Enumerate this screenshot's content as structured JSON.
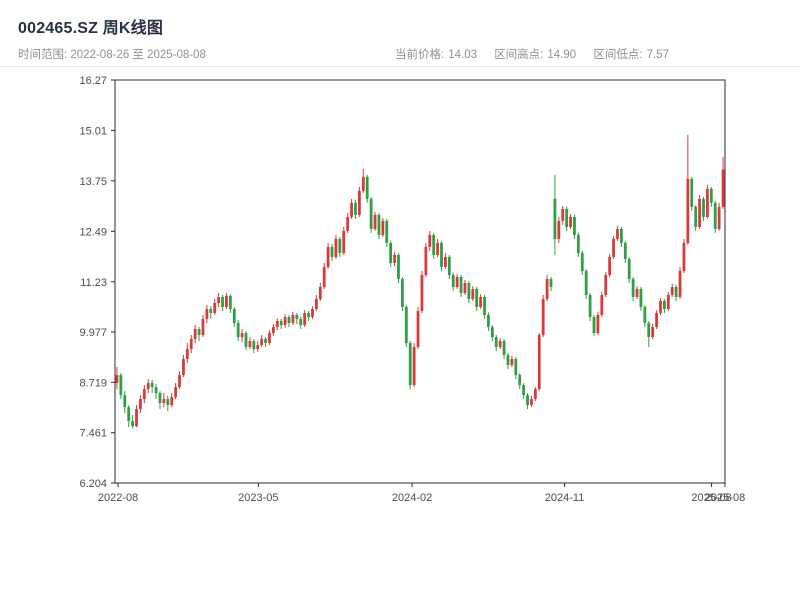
{
  "header": {
    "title": "002465.SZ 周K线图",
    "range_text": "时间范围: 2022-08-26 至 2025-08-08",
    "stats": {
      "current_label": "当前价格:",
      "current_value": "14.03",
      "high_label": "区间高点:",
      "high_value": "14.90",
      "low_label": "区间低点:",
      "low_value": "7.57"
    }
  },
  "chart_data": {
    "type": "candlestick",
    "title": "002465.SZ 周K线图",
    "interval": "weekly",
    "date_range": [
      "2022-08-26",
      "2025-08-08"
    ],
    "current_price": 14.03,
    "range_high": 14.9,
    "range_low": 7.57,
    "ylim": [
      6.204,
      16.27
    ],
    "y_ticks": [
      "16.27",
      "15.01",
      "13.75",
      "12.49",
      "11.23",
      "9.977",
      "8.719",
      "7.461",
      "6.204"
    ],
    "x_ticks": [
      {
        "label": "2022-08",
        "f": 0.005
      },
      {
        "label": "2023-05",
        "f": 0.235
      },
      {
        "label": "2024-02",
        "f": 0.487
      },
      {
        "label": "2024-11",
        "f": 0.737
      },
      {
        "label": "2025-08",
        "f": 0.978
      },
      {
        "label": "2025-08",
        "f": 1.0
      }
    ],
    "up_color": "#d93a3a",
    "down_color": "#2f9e44",
    "axis_color": "#2b2b2b",
    "tick_label_color": "#474f59",
    "grid": false,
    "legend": "none",
    "ohlc": [
      [
        8.7,
        9.1,
        8.55,
        8.9
      ],
      [
        8.9,
        8.95,
        8.3,
        8.4
      ],
      [
        8.4,
        8.5,
        7.95,
        8.1
      ],
      [
        8.1,
        8.15,
        7.6,
        7.75
      ],
      [
        7.75,
        7.9,
        7.57,
        7.62
      ],
      [
        7.62,
        8.15,
        7.6,
        8.05
      ],
      [
        8.05,
        8.4,
        7.95,
        8.3
      ],
      [
        8.3,
        8.65,
        8.2,
        8.55
      ],
      [
        8.55,
        8.8,
        8.45,
        8.7
      ],
      [
        8.7,
        8.78,
        8.45,
        8.6
      ],
      [
        8.6,
        8.68,
        8.3,
        8.45
      ],
      [
        8.45,
        8.5,
        8.05,
        8.2
      ],
      [
        8.2,
        8.45,
        8.1,
        8.3
      ],
      [
        8.3,
        8.38,
        8.0,
        8.15
      ],
      [
        8.15,
        8.45,
        8.1,
        8.35
      ],
      [
        8.35,
        8.7,
        8.3,
        8.6
      ],
      [
        8.6,
        9.0,
        8.55,
        8.9
      ],
      [
        8.9,
        9.4,
        8.85,
        9.3
      ],
      [
        9.3,
        9.7,
        9.2,
        9.55
      ],
      [
        9.55,
        9.9,
        9.45,
        9.8
      ],
      [
        9.8,
        10.15,
        9.7,
        10.05
      ],
      [
        10.05,
        10.1,
        9.75,
        9.9
      ],
      [
        9.9,
        10.4,
        9.85,
        10.3
      ],
      [
        10.3,
        10.65,
        10.2,
        10.55
      ],
      [
        10.55,
        10.62,
        10.3,
        10.45
      ],
      [
        10.45,
        10.8,
        10.4,
        10.7
      ],
      [
        10.7,
        10.95,
        10.6,
        10.85
      ],
      [
        10.85,
        10.9,
        10.5,
        10.6
      ],
      [
        10.6,
        10.95,
        10.55,
        10.88
      ],
      [
        10.88,
        10.92,
        10.45,
        10.55
      ],
      [
        10.55,
        10.6,
        10.1,
        10.2
      ],
      [
        10.2,
        10.28,
        9.75,
        9.85
      ],
      [
        9.85,
        10.05,
        9.72,
        9.95
      ],
      [
        9.95,
        10.0,
        9.52,
        9.6
      ],
      [
        9.6,
        9.85,
        9.55,
        9.75
      ],
      [
        9.75,
        9.8,
        9.45,
        9.55
      ],
      [
        9.55,
        9.75,
        9.48,
        9.65
      ],
      [
        9.65,
        9.9,
        9.6,
        9.8
      ],
      [
        9.8,
        9.85,
        9.6,
        9.7
      ],
      [
        9.7,
        10.02,
        9.65,
        9.95
      ],
      [
        9.95,
        10.18,
        9.88,
        10.1
      ],
      [
        10.1,
        10.32,
        10.02,
        10.25
      ],
      [
        10.25,
        10.3,
        10.05,
        10.15
      ],
      [
        10.15,
        10.42,
        10.08,
        10.35
      ],
      [
        10.35,
        10.4,
        10.1,
        10.2
      ],
      [
        10.2,
        10.48,
        10.15,
        10.4
      ],
      [
        10.4,
        10.45,
        10.18,
        10.3
      ],
      [
        10.3,
        10.36,
        10.05,
        10.15
      ],
      [
        10.15,
        10.52,
        10.1,
        10.45
      ],
      [
        10.45,
        10.5,
        10.25,
        10.35
      ],
      [
        10.35,
        10.62,
        10.3,
        10.55
      ],
      [
        10.55,
        10.9,
        10.5,
        10.8
      ],
      [
        10.8,
        11.2,
        10.75,
        11.1
      ],
      [
        11.1,
        11.7,
        11.05,
        11.6
      ],
      [
        11.6,
        12.2,
        11.55,
        12.1
      ],
      [
        12.1,
        12.18,
        11.75,
        11.85
      ],
      [
        11.85,
        12.4,
        11.8,
        12.3
      ],
      [
        12.3,
        12.35,
        11.85,
        11.95
      ],
      [
        11.95,
        12.6,
        11.9,
        12.5
      ],
      [
        12.5,
        12.95,
        12.45,
        12.85
      ],
      [
        12.85,
        13.3,
        12.8,
        13.2
      ],
      [
        13.2,
        13.28,
        12.8,
        12.9
      ],
      [
        12.9,
        13.6,
        12.85,
        13.5
      ],
      [
        13.5,
        14.05,
        13.45,
        13.85
      ],
      [
        13.85,
        13.9,
        13.2,
        13.3
      ],
      [
        13.3,
        13.35,
        12.45,
        12.55
      ],
      [
        12.55,
        12.98,
        12.5,
        12.9
      ],
      [
        12.9,
        12.95,
        12.3,
        12.4
      ],
      [
        12.4,
        12.82,
        12.35,
        12.75
      ],
      [
        12.75,
        12.8,
        12.1,
        12.2
      ],
      [
        12.2,
        12.26,
        11.6,
        11.7
      ],
      [
        11.7,
        11.98,
        11.62,
        11.9
      ],
      [
        11.9,
        11.95,
        11.2,
        11.3
      ],
      [
        11.3,
        11.35,
        10.5,
        10.6
      ],
      [
        10.6,
        10.65,
        9.6,
        9.7
      ],
      [
        9.7,
        9.75,
        8.55,
        8.65
      ],
      [
        8.65,
        9.7,
        8.6,
        9.6
      ],
      [
        9.6,
        10.6,
        9.55,
        10.5
      ],
      [
        10.5,
        11.5,
        10.45,
        11.4
      ],
      [
        11.4,
        12.2,
        11.35,
        12.1
      ],
      [
        12.1,
        12.5,
        12.0,
        12.4
      ],
      [
        12.4,
        12.45,
        11.8,
        11.9
      ],
      [
        11.9,
        12.3,
        11.85,
        12.2
      ],
      [
        12.2,
        12.25,
        11.5,
        11.6
      ],
      [
        11.6,
        11.95,
        11.55,
        11.85
      ],
      [
        11.85,
        11.9,
        11.3,
        11.4
      ],
      [
        11.4,
        11.46,
        11.0,
        11.1
      ],
      [
        11.1,
        11.42,
        11.05,
        11.35
      ],
      [
        11.35,
        11.4,
        10.85,
        10.95
      ],
      [
        10.95,
        11.28,
        10.9,
        11.2
      ],
      [
        11.2,
        11.25,
        10.7,
        10.8
      ],
      [
        10.8,
        11.12,
        10.75,
        11.05
      ],
      [
        11.05,
        11.1,
        10.5,
        10.6
      ],
      [
        10.6,
        10.92,
        10.55,
        10.85
      ],
      [
        10.85,
        10.9,
        10.3,
        10.4
      ],
      [
        10.4,
        10.46,
        10.0,
        10.1
      ],
      [
        10.1,
        10.15,
        9.75,
        9.85
      ],
      [
        9.85,
        9.9,
        9.5,
        9.6
      ],
      [
        9.6,
        9.82,
        9.55,
        9.75
      ],
      [
        9.75,
        9.8,
        9.3,
        9.4
      ],
      [
        9.4,
        9.45,
        9.05,
        9.15
      ],
      [
        9.15,
        9.38,
        9.1,
        9.3
      ],
      [
        9.3,
        9.35,
        8.8,
        8.9
      ],
      [
        8.9,
        8.95,
        8.55,
        8.65
      ],
      [
        8.65,
        8.7,
        8.3,
        8.4
      ],
      [
        8.4,
        8.45,
        8.05,
        8.15
      ],
      [
        8.15,
        8.38,
        8.1,
        8.3
      ],
      [
        8.3,
        8.6,
        8.25,
        8.55
      ],
      [
        8.55,
        9.95,
        8.5,
        9.9
      ],
      [
        9.9,
        10.9,
        9.85,
        10.8
      ],
      [
        10.8,
        11.4,
        10.75,
        11.3
      ],
      [
        11.3,
        11.35,
        11.0,
        11.1
      ],
      [
        13.3,
        13.9,
        11.9,
        12.3
      ],
      [
        12.3,
        12.85,
        12.2,
        12.75
      ],
      [
        12.75,
        13.12,
        12.65,
        13.05
      ],
      [
        13.05,
        13.1,
        12.5,
        12.6
      ],
      [
        12.6,
        12.92,
        12.55,
        12.85
      ],
      [
        12.85,
        12.9,
        12.3,
        12.4
      ],
      [
        12.4,
        12.46,
        11.85,
        11.95
      ],
      [
        11.95,
        12.0,
        11.4,
        11.5
      ],
      [
        11.5,
        11.55,
        10.8,
        10.9
      ],
      [
        10.9,
        10.95,
        10.25,
        10.35
      ],
      [
        10.35,
        10.4,
        9.88,
        9.95
      ],
      [
        9.95,
        10.48,
        9.9,
        10.4
      ],
      [
        10.4,
        10.98,
        10.35,
        10.9
      ],
      [
        10.9,
        11.48,
        10.85,
        11.4
      ],
      [
        11.4,
        11.92,
        11.35,
        11.85
      ],
      [
        11.85,
        12.38,
        11.8,
        12.3
      ],
      [
        12.3,
        12.62,
        12.25,
        12.55
      ],
      [
        12.55,
        12.6,
        12.1,
        12.2
      ],
      [
        12.2,
        12.25,
        11.7,
        11.8
      ],
      [
        11.8,
        11.85,
        11.2,
        11.3
      ],
      [
        11.3,
        11.35,
        10.75,
        10.85
      ],
      [
        10.85,
        11.12,
        10.8,
        11.05
      ],
      [
        11.05,
        11.1,
        10.5,
        10.6
      ],
      [
        10.6,
        10.65,
        10.1,
        10.2
      ],
      [
        10.2,
        10.25,
        9.6,
        9.85
      ],
      [
        9.85,
        10.18,
        9.8,
        10.1
      ],
      [
        10.1,
        10.52,
        10.05,
        10.45
      ],
      [
        10.45,
        10.82,
        10.4,
        10.75
      ],
      [
        10.75,
        10.8,
        10.45,
        10.55
      ],
      [
        10.55,
        10.98,
        10.5,
        10.9
      ],
      [
        10.9,
        11.18,
        10.85,
        11.1
      ],
      [
        11.1,
        11.15,
        10.75,
        10.85
      ],
      [
        10.85,
        11.6,
        10.8,
        11.5
      ],
      [
        11.5,
        12.3,
        11.45,
        12.2
      ],
      [
        12.2,
        14.9,
        12.15,
        13.8
      ],
      [
        13.8,
        13.85,
        13.0,
        13.1
      ],
      [
        13.1,
        13.15,
        12.5,
        12.6
      ],
      [
        12.6,
        13.4,
        12.55,
        13.3
      ],
      [
        13.3,
        13.35,
        12.75,
        12.85
      ],
      [
        12.85,
        13.65,
        12.8,
        13.55
      ],
      [
        13.55,
        13.6,
        13.1,
        13.2
      ],
      [
        13.2,
        13.25,
        12.45,
        12.55
      ],
      [
        12.55,
        13.2,
        12.5,
        13.1
      ],
      [
        13.1,
        14.35,
        13.05,
        14.03
      ]
    ]
  }
}
